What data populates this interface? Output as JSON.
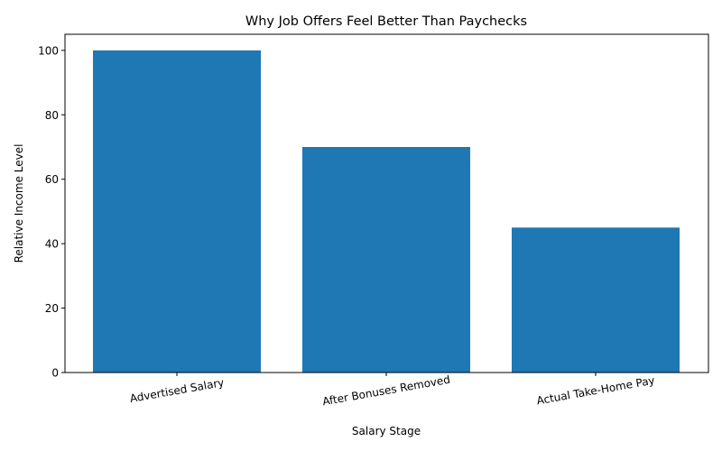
{
  "chart_data": {
    "type": "bar",
    "title": "Why Job Offers Feel Better Than Paychecks",
    "xlabel": "Salary Stage",
    "ylabel": "Relative Income Level",
    "categories": [
      "Advertised Salary",
      "After Bonuses Removed",
      "Actual Take-Home Pay"
    ],
    "values": [
      100,
      70,
      45
    ],
    "ylim": [
      0,
      105
    ],
    "yticks": [
      0,
      20,
      40,
      60,
      80,
      100
    ],
    "bar_color": "#1f77b4",
    "grid": false,
    "legend": null,
    "xtick_rotation": 10
  }
}
